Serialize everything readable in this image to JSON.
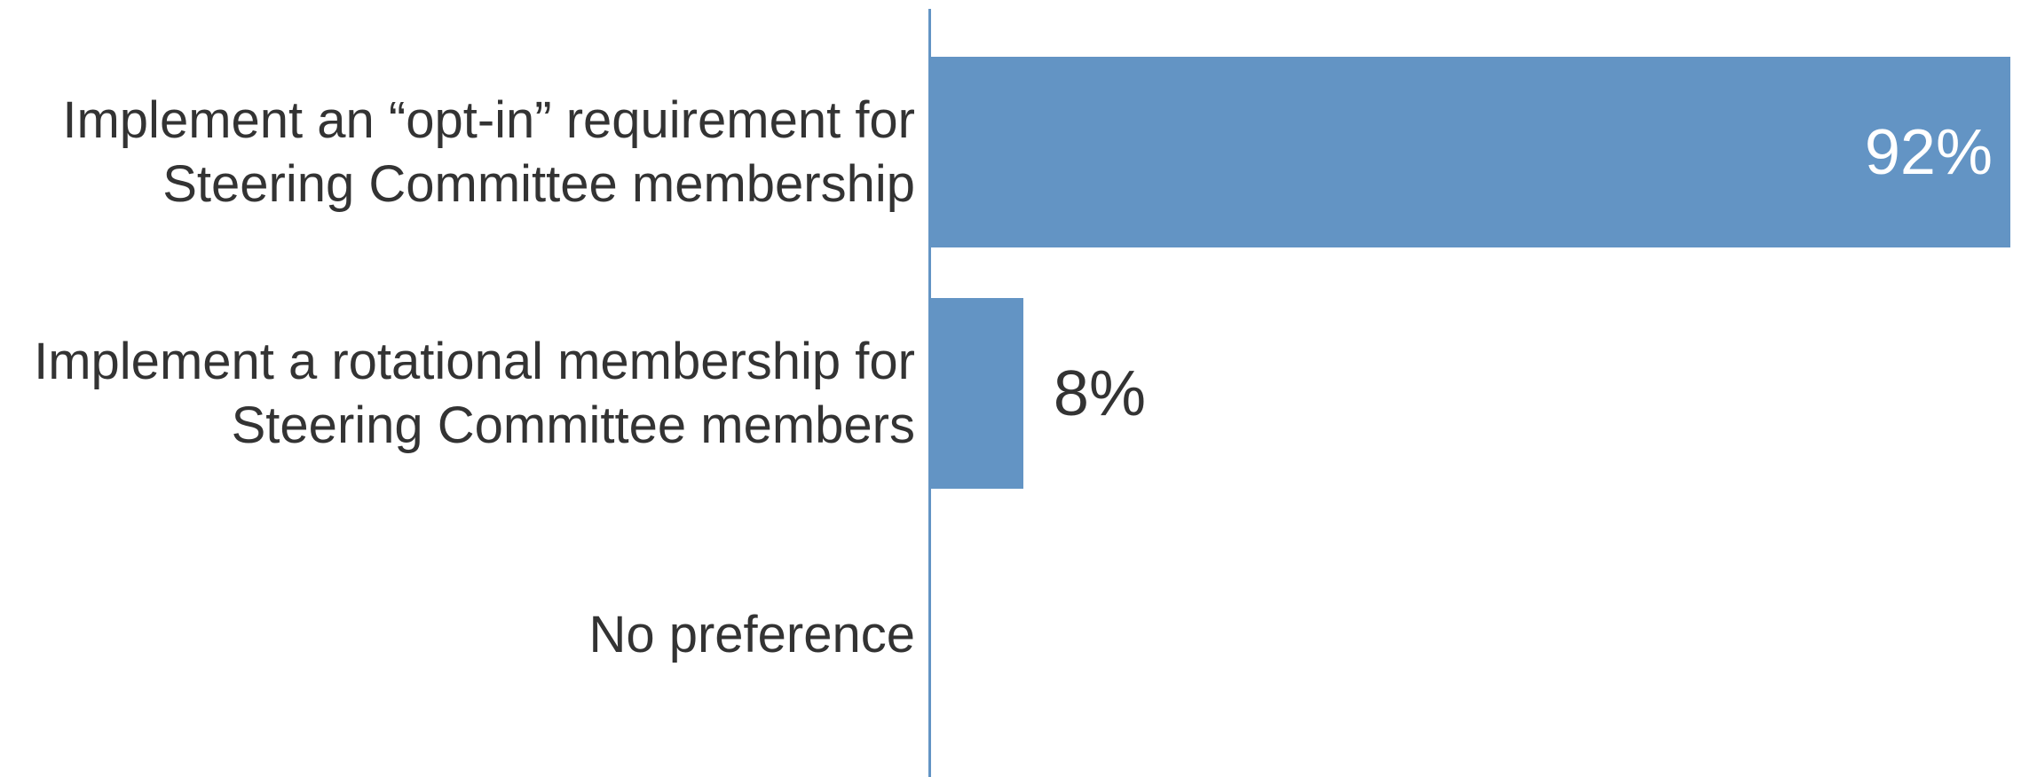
{
  "chart_data": {
    "type": "bar",
    "orientation": "horizontal",
    "categories": [
      "Implement an “opt-in” requirement for Steering Committee membership",
      "Implement a rotational membership for Steering Committee members",
      "No preference"
    ],
    "values": [
      92,
      8,
      0
    ],
    "value_labels": [
      "92%",
      "8%",
      null
    ],
    "color": "#6394c4",
    "xlim": [
      0,
      92
    ]
  }
}
